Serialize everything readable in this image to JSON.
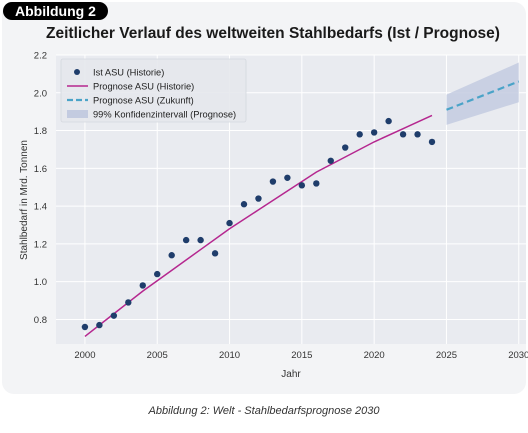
{
  "badge": "Abbildung 2",
  "caption": "Abbildung 2: Welt - Stahlbedarfsprognose 2030",
  "colors": {
    "points": "#1f3d6b",
    "prognose_historie": "#b5278f",
    "prognose_zukunft": "#4aa3c8",
    "konfidenz": "#c3cbe0",
    "plot_background": "#e9ebf0"
  },
  "chart_data": {
    "type": "scatter",
    "title": "Zeitlicher Verlauf des weltweiten Stahlbedarfs (Ist / Prognose)",
    "xlabel": "Jahr",
    "ylabel": "Stahlbedarf in Mrd. Tonnen",
    "xlim": [
      1998,
      2030.5
    ],
    "ylim": [
      0.67,
      2.2
    ],
    "xticks": [
      "2000",
      "2005",
      "2010",
      "2015",
      "2020",
      "2025",
      "2030"
    ],
    "yticks": [
      "0.8",
      "1.0",
      "1.2",
      "1.4",
      "1.6",
      "1.8",
      "2.0",
      "2.2"
    ],
    "grid": true,
    "legend_position": "top-left",
    "series": [
      {
        "name": "Ist ASU (Historie)",
        "kind": "points",
        "x": [
          2000,
          2001,
          2002,
          2003,
          2004,
          2005,
          2006,
          2007,
          2008,
          2009,
          2010,
          2011,
          2012,
          2013,
          2014,
          2015,
          2016,
          2017,
          2018,
          2019,
          2020,
          2021,
          2022,
          2023,
          2024
        ],
        "y": [
          0.76,
          0.77,
          0.82,
          0.89,
          0.98,
          1.04,
          1.14,
          1.22,
          1.22,
          1.15,
          1.31,
          1.41,
          1.44,
          1.53,
          1.55,
          1.51,
          1.52,
          1.64,
          1.71,
          1.78,
          1.79,
          1.85,
          1.78,
          1.78,
          1.74
        ]
      },
      {
        "name": "Prognose ASU (Historie)",
        "kind": "line",
        "x": [
          2000,
          2002,
          2004,
          2006,
          2008,
          2010,
          2012,
          2014,
          2016,
          2018,
          2020,
          2022,
          2024
        ],
        "y": [
          0.71,
          0.83,
          0.95,
          1.06,
          1.17,
          1.28,
          1.38,
          1.48,
          1.58,
          1.66,
          1.74,
          1.81,
          1.88
        ]
      },
      {
        "name": "Prognose ASU (Zukunft)",
        "kind": "dashed-line",
        "x": [
          2025,
          2026,
          2027,
          2028,
          2029,
          2030
        ],
        "y": [
          1.91,
          1.94,
          1.97,
          2.0,
          2.03,
          2.06
        ]
      },
      {
        "name": "99% Konfidenzintervall (Prognose)",
        "kind": "band",
        "x": [
          2025,
          2030
        ],
        "lower": [
          1.83,
          1.95
        ],
        "upper": [
          1.99,
          2.16
        ]
      }
    ]
  }
}
